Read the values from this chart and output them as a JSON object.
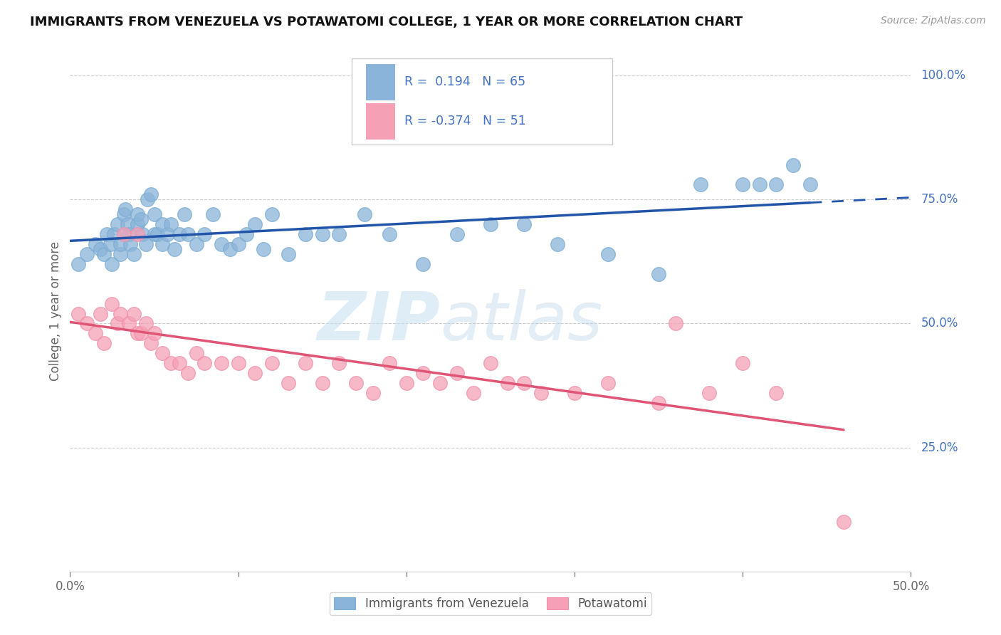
{
  "title": "IMMIGRANTS FROM VENEZUELA VS POTAWATOMI COLLEGE, 1 YEAR OR MORE CORRELATION CHART",
  "source_text": "Source: ZipAtlas.com",
  "ylabel": "College, 1 year or more",
  "xlim": [
    0.0,
    0.5
  ],
  "ylim": [
    0.0,
    1.05
  ],
  "x_ticks": [
    0.0,
    0.1,
    0.2,
    0.3,
    0.4,
    0.5
  ],
  "x_tick_labels": [
    "0.0%",
    "",
    "",
    "",
    "",
    "50.0%"
  ],
  "y_tick_positions": [
    0.25,
    0.5,
    0.75,
    1.0
  ],
  "y_tick_labels": [
    "25.0%",
    "50.0%",
    "75.0%",
    "100.0%"
  ],
  "R_blue": 0.194,
  "N_blue": 65,
  "R_pink": -0.374,
  "N_pink": 51,
  "blue_color": "#8ab4d9",
  "pink_color": "#f5a0b5",
  "blue_line_color": "#2255aa",
  "pink_line_color": "#e05575",
  "legend_label_blue": "Immigrants from Venezuela",
  "legend_label_pink": "Potawatomi",
  "watermark_zip": "ZIP",
  "watermark_atlas": "atlas",
  "blue_scatter_x": [
    0.005,
    0.01,
    0.015,
    0.018,
    0.02,
    0.022,
    0.024,
    0.025,
    0.026,
    0.028,
    0.03,
    0.03,
    0.032,
    0.033,
    0.034,
    0.035,
    0.036,
    0.038,
    0.04,
    0.04,
    0.042,
    0.043,
    0.045,
    0.046,
    0.048,
    0.05,
    0.05,
    0.052,
    0.055,
    0.055,
    0.058,
    0.06,
    0.062,
    0.065,
    0.068,
    0.07,
    0.075,
    0.08,
    0.085,
    0.09,
    0.095,
    0.1,
    0.105,
    0.11,
    0.115,
    0.12,
    0.13,
    0.14,
    0.15,
    0.16,
    0.175,
    0.19,
    0.21,
    0.23,
    0.25,
    0.27,
    0.29,
    0.32,
    0.35,
    0.375,
    0.4,
    0.41,
    0.42,
    0.43,
    0.44
  ],
  "blue_scatter_y": [
    0.62,
    0.64,
    0.66,
    0.65,
    0.64,
    0.68,
    0.66,
    0.62,
    0.68,
    0.7,
    0.64,
    0.66,
    0.72,
    0.73,
    0.7,
    0.68,
    0.66,
    0.64,
    0.7,
    0.72,
    0.71,
    0.68,
    0.66,
    0.75,
    0.76,
    0.68,
    0.72,
    0.68,
    0.7,
    0.66,
    0.68,
    0.7,
    0.65,
    0.68,
    0.72,
    0.68,
    0.66,
    0.68,
    0.72,
    0.66,
    0.65,
    0.66,
    0.68,
    0.7,
    0.65,
    0.72,
    0.64,
    0.68,
    0.68,
    0.68,
    0.72,
    0.68,
    0.62,
    0.68,
    0.7,
    0.7,
    0.66,
    0.64,
    0.6,
    0.78,
    0.78,
    0.78,
    0.78,
    0.82,
    0.78
  ],
  "pink_scatter_x": [
    0.005,
    0.01,
    0.015,
    0.018,
    0.02,
    0.025,
    0.028,
    0.03,
    0.032,
    0.035,
    0.038,
    0.04,
    0.04,
    0.042,
    0.045,
    0.048,
    0.05,
    0.055,
    0.06,
    0.065,
    0.07,
    0.075,
    0.08,
    0.09,
    0.1,
    0.11,
    0.12,
    0.13,
    0.14,
    0.15,
    0.16,
    0.17,
    0.18,
    0.19,
    0.2,
    0.21,
    0.22,
    0.23,
    0.24,
    0.25,
    0.26,
    0.27,
    0.28,
    0.3,
    0.32,
    0.36,
    0.38,
    0.42,
    0.46,
    0.4,
    0.35
  ],
  "pink_scatter_y": [
    0.52,
    0.5,
    0.48,
    0.52,
    0.46,
    0.54,
    0.5,
    0.52,
    0.68,
    0.5,
    0.52,
    0.48,
    0.68,
    0.48,
    0.5,
    0.46,
    0.48,
    0.44,
    0.42,
    0.42,
    0.4,
    0.44,
    0.42,
    0.42,
    0.42,
    0.4,
    0.42,
    0.38,
    0.42,
    0.38,
    0.42,
    0.38,
    0.36,
    0.42,
    0.38,
    0.4,
    0.38,
    0.4,
    0.36,
    0.42,
    0.38,
    0.38,
    0.36,
    0.36,
    0.38,
    0.5,
    0.36,
    0.36,
    0.1,
    0.42,
    0.34
  ]
}
